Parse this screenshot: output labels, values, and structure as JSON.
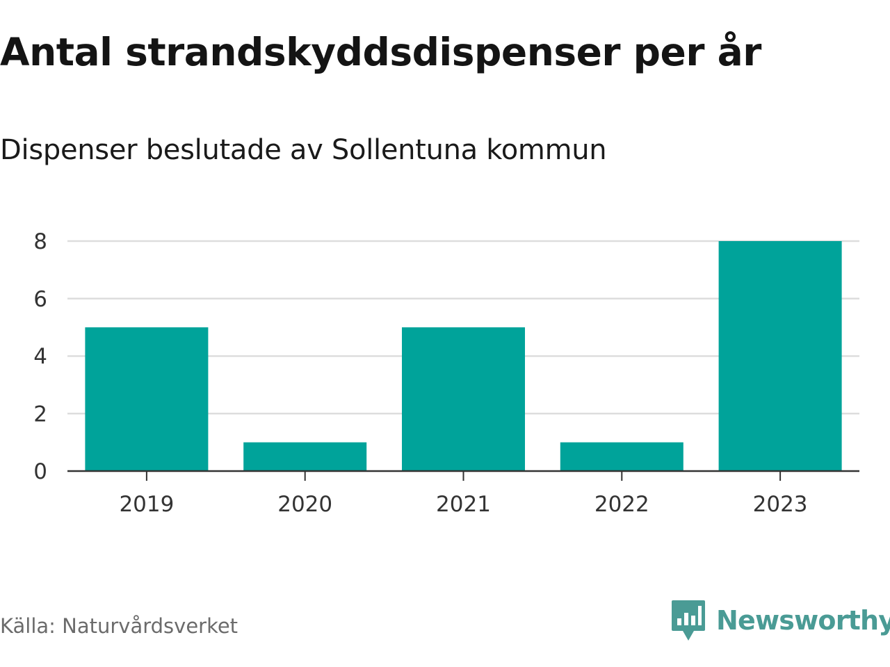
{
  "header": {
    "title": "Antal strandskyddsdispenser per år",
    "subtitle": "Dispenser beslutade av Sollentuna kommun"
  },
  "footer": {
    "source": "Källa: Naturvårdsverket",
    "brand": "Newsworthy",
    "brand_icon": "newsworthy-logo-icon",
    "brand_color": "#4a9b95"
  },
  "chart_data": {
    "type": "bar",
    "title": "Antal strandskyddsdispenser per år",
    "subtitle": "Dispenser beslutade av Sollentuna kommun",
    "categories": [
      "2019",
      "2020",
      "2021",
      "2022",
      "2023"
    ],
    "values": [
      5,
      1,
      5,
      1,
      8
    ],
    "xlabel": "",
    "ylabel": "",
    "ylim": [
      0,
      8
    ],
    "yticks": [
      "0",
      "2",
      "4",
      "6",
      "8"
    ],
    "grid": true,
    "bar_color": "#00a39a"
  }
}
